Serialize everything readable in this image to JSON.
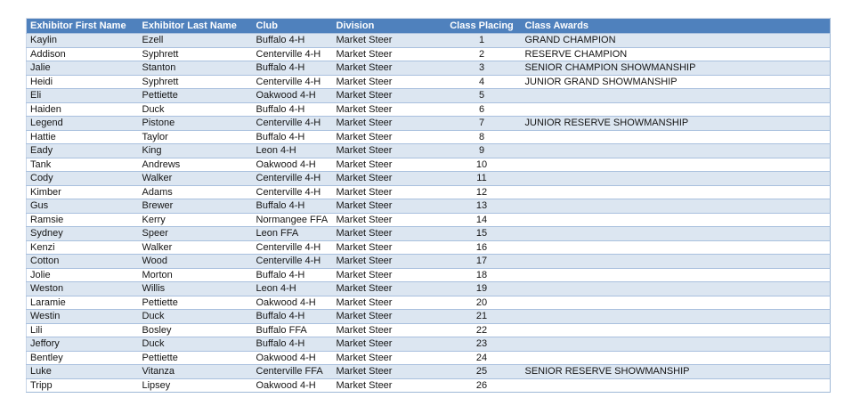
{
  "table": {
    "columns": [
      "Exhibitor First Name",
      "Exhibitor Last Name",
      "Club",
      "Division",
      "Class Placing",
      "Class Awards"
    ],
    "rows": [
      [
        "Kaylin",
        "Ezell",
        "Buffalo 4-H",
        "Market Steer",
        "1",
        "GRAND CHAMPION"
      ],
      [
        "Addison",
        "Syphrett",
        "Centerville 4-H",
        "Market Steer",
        "2",
        "RESERVE CHAMPION"
      ],
      [
        "Jalie",
        "Stanton",
        "Buffalo 4-H",
        "Market Steer",
        "3",
        "SENIOR CHAMPION SHOWMANSHIP"
      ],
      [
        "Heidi",
        "Syphrett",
        "Centerville 4-H",
        "Market Steer",
        "4",
        "JUNIOR GRAND SHOWMANSHIP"
      ],
      [
        "Eli",
        "Pettiette",
        "Oakwood 4-H",
        "Market Steer",
        "5",
        ""
      ],
      [
        "Haiden",
        "Duck",
        "Buffalo 4-H",
        "Market Steer",
        "6",
        ""
      ],
      [
        "Legend",
        "Pistone",
        "Centerville 4-H",
        "Market Steer",
        "7",
        "JUNIOR RESERVE SHOWMANSHIP"
      ],
      [
        "Hattie",
        "Taylor",
        "Buffalo 4-H",
        "Market Steer",
        "8",
        ""
      ],
      [
        "Eady",
        "King",
        "Leon 4-H",
        "Market Steer",
        "9",
        ""
      ],
      [
        "Tank",
        "Andrews",
        "Oakwood 4-H",
        "Market Steer",
        "10",
        ""
      ],
      [
        "Cody",
        "Walker",
        "Centerville 4-H",
        "Market Steer",
        "11",
        ""
      ],
      [
        "Kimber",
        "Adams",
        "Centerville 4-H",
        "Market Steer",
        "12",
        ""
      ],
      [
        "Gus",
        "Brewer",
        "Buffalo 4-H",
        "Market Steer",
        "13",
        ""
      ],
      [
        "Ramsie",
        "Kerry",
        "Normangee FFA",
        "Market Steer",
        "14",
        ""
      ],
      [
        "Sydney",
        "Speer",
        "Leon FFA",
        "Market Steer",
        "15",
        ""
      ],
      [
        "Kenzi",
        "Walker",
        "Centerville 4-H",
        "Market Steer",
        "16",
        ""
      ],
      [
        "Cotton",
        "Wood",
        "Centerville 4-H",
        "Market Steer",
        "17",
        ""
      ],
      [
        "Jolie",
        "Morton",
        "Buffalo 4-H",
        "Market Steer",
        "18",
        ""
      ],
      [
        "Weston",
        "Willis",
        "Leon 4-H",
        "Market Steer",
        "19",
        ""
      ],
      [
        "Laramie",
        "Pettiette",
        "Oakwood 4-H",
        "Market Steer",
        "20",
        ""
      ],
      [
        "Westin",
        "Duck",
        "Buffalo 4-H",
        "Market Steer",
        "21",
        ""
      ],
      [
        "Lili",
        "Bosley",
        "Buffalo FFA",
        "Market Steer",
        "22",
        ""
      ],
      [
        "Jeffory",
        "Duck",
        "Buffalo 4-H",
        "Market Steer",
        "23",
        ""
      ],
      [
        "Bentley",
        "Pettiette",
        "Oakwood 4-H",
        "Market Steer",
        "24",
        ""
      ],
      [
        "Luke",
        "Vitanza",
        "Centerville FFA",
        "Market Steer",
        "25",
        "SENIOR RESERVE SHOWMANSHIP"
      ],
      [
        "Tripp",
        "Lipsey",
        "Oakwood 4-H",
        "Market Steer",
        "26",
        ""
      ]
    ]
  },
  "colors": {
    "header_background": "#4f81bd",
    "header_text": "#ffffff",
    "banded_row_background": "#dce6f1",
    "plain_row_background": "#ffffff",
    "row_border": "#a9c0de",
    "body_text": "#151515"
  }
}
